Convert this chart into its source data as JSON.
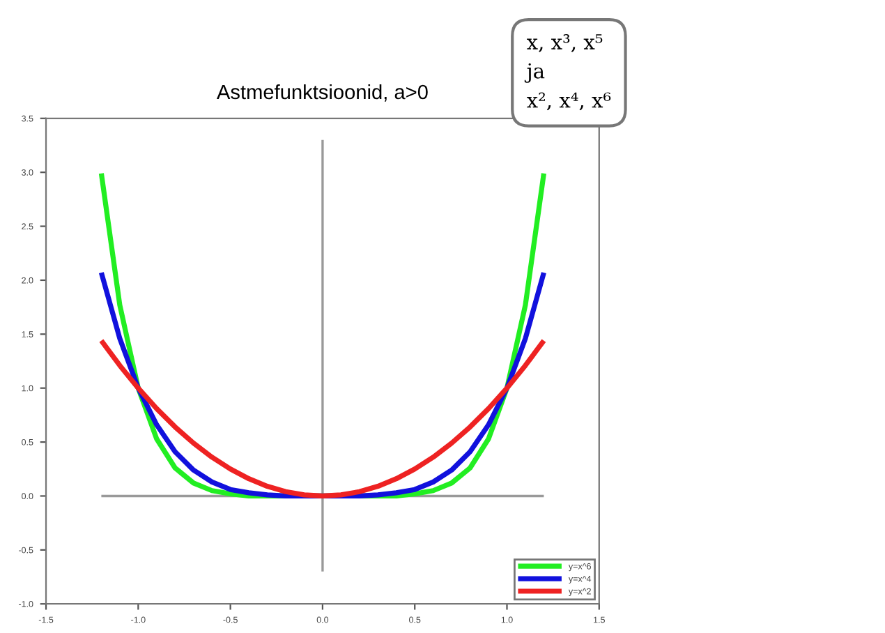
{
  "chart_data": {
    "type": "line",
    "title": "Astmefunktsioonid, a>0",
    "x": [
      -1.2,
      -1.1,
      -1.0,
      -0.9,
      -0.8,
      -0.7,
      -0.6,
      -0.5,
      -0.4,
      -0.3,
      -0.2,
      -0.1,
      0.0,
      0.1,
      0.2,
      0.3,
      0.4,
      0.5,
      0.6,
      0.7,
      0.8,
      0.9,
      1.0,
      1.1,
      1.2
    ],
    "series": [
      {
        "name": "y=x^6",
        "color": "#22ee22",
        "values": [
          2.99,
          1.77,
          1.0,
          0.53,
          0.26,
          0.12,
          0.05,
          0.02,
          0.0,
          0.0,
          0.0,
          0.0,
          0.0,
          0.0,
          0.0,
          0.0,
          0.0,
          0.02,
          0.05,
          0.12,
          0.26,
          0.53,
          1.0,
          1.77,
          2.99
        ]
      },
      {
        "name": "y=x^4",
        "color": "#1111dd",
        "values": [
          2.07,
          1.46,
          1.0,
          0.66,
          0.41,
          0.24,
          0.13,
          0.06,
          0.03,
          0.01,
          0.0,
          0.0,
          0.0,
          0.0,
          0.0,
          0.01,
          0.03,
          0.06,
          0.13,
          0.24,
          0.41,
          0.66,
          1.0,
          1.46,
          2.07
        ]
      },
      {
        "name": "y=x^2",
        "color": "#ee2222",
        "values": [
          1.44,
          1.21,
          1.0,
          0.81,
          0.64,
          0.49,
          0.36,
          0.25,
          0.16,
          0.09,
          0.04,
          0.01,
          0.0,
          0.01,
          0.04,
          0.09,
          0.16,
          0.25,
          0.36,
          0.49,
          0.64,
          0.81,
          1.0,
          1.21,
          1.44
        ]
      },
      {
        "color": "#999999",
        "x": [
          -1.2,
          1.2
        ],
        "values": [
          0.0,
          0.0
        ]
      },
      {
        "color": "#999999",
        "x": [
          0.0,
          0.0
        ],
        "values": [
          -0.7,
          3.3
        ]
      }
    ],
    "xlim": [
      -1.5,
      1.5
    ],
    "xticks": [
      -1.5,
      {
        "value": -1,
        "label": "-1.0"
      },
      -0.5,
      {
        "value": 0,
        "label": "0.0"
      },
      0.5,
      {
        "value": 1,
        "label": "1.0"
      },
      1.5
    ],
    "ylim": [
      -1.0,
      3.5
    ],
    "yticks": [
      {
        "value": -1,
        "label": "-1.0"
      },
      -0.5,
      {
        "value": 0,
        "label": "0.0"
      },
      0.5,
      {
        "value": 1,
        "label": "1.0"
      },
      1.5,
      {
        "value": 2,
        "label": "2.0"
      },
      2.5,
      {
        "value": 3,
        "label": "3.0"
      },
      3.5
    ],
    "grid": false,
    "legend": "bottom right",
    "marker": "none",
    "line_style": "solid",
    "annotations": [
      "x, x³, x⁵\nja\nx², x⁴, x⁶"
    ]
  }
}
